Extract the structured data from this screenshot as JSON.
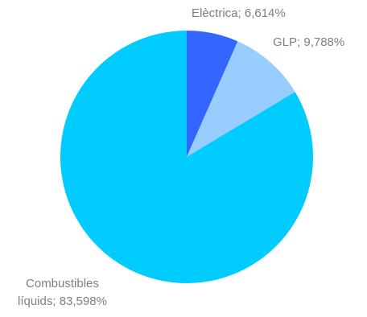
{
  "chart_data": {
    "type": "pie",
    "slices": [
      {
        "label": "Elèctrica",
        "value": 6.614,
        "display": "Elèctrica; 6,614%",
        "color": "#3366ff"
      },
      {
        "label": "GLP",
        "value": 9.788,
        "display": "GLP; 9,788%",
        "color": "#99ccff"
      },
      {
        "label": "Combustibles líquids",
        "value": 83.598,
        "display_line1": "Combustibles",
        "display_line2": "líquids; 83,598%",
        "color": "#00ccff"
      }
    ],
    "start_angle": "12 o'clock",
    "direction": "clockwise",
    "legend": "none"
  }
}
